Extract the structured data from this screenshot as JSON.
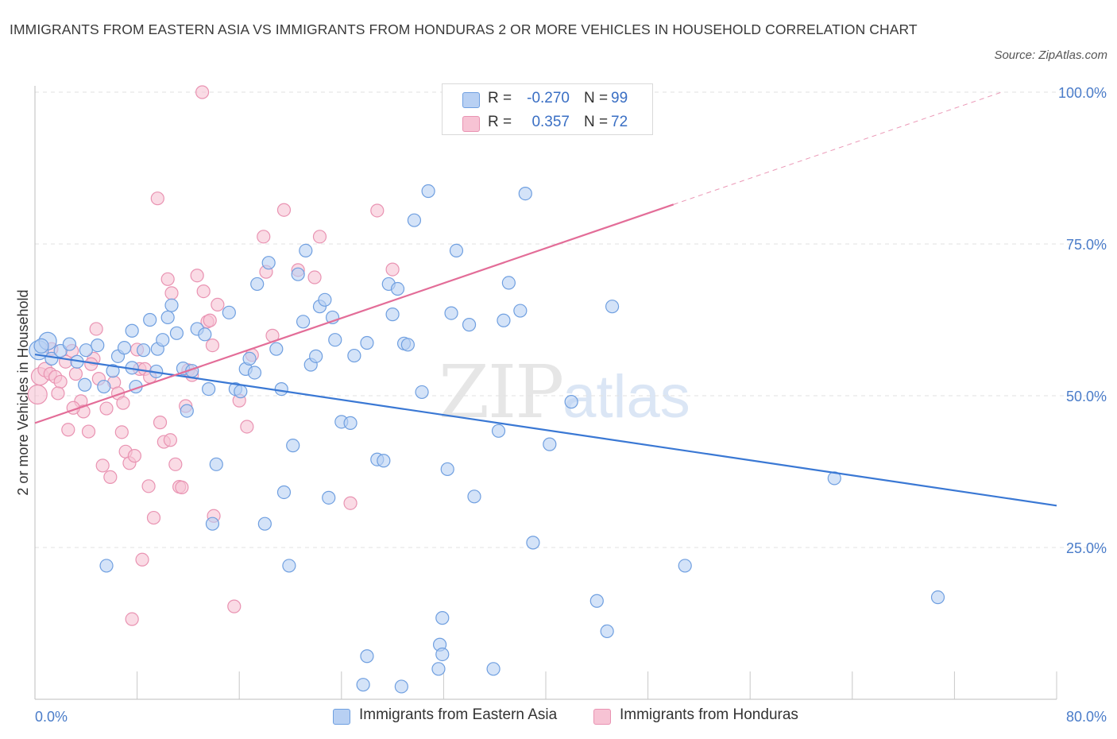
{
  "title": "IMMIGRANTS FROM EASTERN ASIA VS IMMIGRANTS FROM HONDURAS 2 OR MORE VEHICLES IN HOUSEHOLD CORRELATION CHART",
  "source": "Source: ZipAtlas.com",
  "watermark": {
    "zip": "ZIP",
    "atlas": "atlas"
  },
  "legend": {
    "rows": [
      {
        "r_label": "R =",
        "r_value": "-0.270",
        "n_label": "N =",
        "n_value": "99"
      },
      {
        "r_label": "R =",
        "r_value": "0.357",
        "n_label": "N =",
        "n_value": "72"
      }
    ]
  },
  "bottom_legend": {
    "series1": "Immigrants from Eastern Asia",
    "series2": "Immigrants from Honduras"
  },
  "colors": {
    "blue_fill": "#b8d0f3",
    "blue_stroke": "#6f9fe0",
    "blue_line": "#3a78d4",
    "pink_fill": "#f7c3d4",
    "pink_stroke": "#e993b2",
    "pink_line": "#e36d98",
    "grid": "#e1e1e1",
    "axis_text": "#4a7cc9"
  },
  "chart_data": {
    "type": "scatter",
    "title": "IMMIGRANTS FROM EASTERN ASIA VS IMMIGRANTS FROM HONDURAS 2 OR MORE VEHICLES IN HOUSEHOLD CORRELATION CHART",
    "xlabel": "",
    "ylabel": "2 or more Vehicles in Household",
    "xlim": [
      0,
      80
    ],
    "ylim": [
      0,
      100
    ],
    "x_tick_labels": [
      "0.0%",
      "80.0%"
    ],
    "y_ticks": [
      25,
      50,
      75,
      100
    ],
    "y_tick_labels": [
      "25.0%",
      "50.0%",
      "75.0%",
      "100.0%"
    ],
    "grid": true,
    "legend_position": "top-center",
    "series": [
      {
        "name": "Immigrants from Eastern Asia",
        "R": -0.27,
        "N": 99,
        "trend": {
          "x": [
            0,
            80
          ],
          "y": [
            56.8,
            31.9
          ]
        },
        "points": [
          [
            0.3,
            57.5,
            12
          ],
          [
            1.0,
            59.0,
            11
          ],
          [
            0.5,
            58.2,
            9
          ],
          [
            1.3,
            56.1,
            8
          ],
          [
            2.0,
            57.4,
            8
          ],
          [
            2.7,
            58.5,
            8
          ],
          [
            3.3,
            55.6,
            8
          ],
          [
            4.0,
            57.5,
            8
          ],
          [
            4.9,
            58.3,
            8
          ],
          [
            3.9,
            51.8,
            8
          ],
          [
            5.4,
            51.5,
            8
          ],
          [
            6.1,
            54.1,
            8
          ],
          [
            6.5,
            56.5,
            8
          ],
          [
            7.0,
            57.9,
            8
          ],
          [
            7.6,
            54.6,
            8
          ],
          [
            7.9,
            51.5,
            8
          ],
          [
            7.6,
            60.7,
            8
          ],
          [
            8.5,
            57.5,
            8
          ],
          [
            9.0,
            62.5,
            8
          ],
          [
            9.5,
            54.0,
            8
          ],
          [
            9.6,
            57.7,
            8
          ],
          [
            10.0,
            59.2,
            8
          ],
          [
            10.4,
            62.9,
            8
          ],
          [
            10.7,
            64.9,
            8
          ],
          [
            11.1,
            60.3,
            8
          ],
          [
            11.6,
            54.5,
            8
          ],
          [
            11.9,
            47.5,
            8
          ],
          [
            12.3,
            54.1,
            8
          ],
          [
            12.7,
            61.0,
            8
          ],
          [
            13.3,
            60.1,
            8
          ],
          [
            13.6,
            51.1,
            8
          ],
          [
            13.9,
            28.9,
            8
          ],
          [
            14.2,
            38.7,
            8
          ],
          [
            15.2,
            63.7,
            8
          ],
          [
            15.7,
            51.1,
            8
          ],
          [
            16.1,
            50.7,
            8
          ],
          [
            16.5,
            54.4,
            8
          ],
          [
            16.8,
            56.1,
            8
          ],
          [
            17.2,
            53.8,
            8
          ],
          [
            17.4,
            68.4,
            8
          ],
          [
            18.0,
            28.9,
            8
          ],
          [
            18.3,
            71.9,
            8
          ],
          [
            18.9,
            57.7,
            8
          ],
          [
            19.3,
            51.1,
            8
          ],
          [
            19.5,
            34.1,
            8
          ],
          [
            19.9,
            22.0,
            8
          ],
          [
            20.2,
            41.8,
            8
          ],
          [
            20.6,
            70.0,
            8
          ],
          [
            21.0,
            62.2,
            8
          ],
          [
            21.2,
            73.9,
            8
          ],
          [
            21.6,
            55.1,
            8
          ],
          [
            22.0,
            56.5,
            8
          ],
          [
            22.3,
            64.7,
            8
          ],
          [
            22.7,
            65.8,
            8
          ],
          [
            23.0,
            33.2,
            8
          ],
          [
            23.3,
            62.9,
            8
          ],
          [
            23.5,
            59.2,
            8
          ],
          [
            24.0,
            45.7,
            8
          ],
          [
            24.7,
            45.5,
            8
          ],
          [
            25.0,
            56.6,
            8
          ],
          [
            26.0,
            58.7,
            8
          ],
          [
            26.8,
            39.5,
            8
          ],
          [
            27.3,
            39.3,
            8
          ],
          [
            27.7,
            68.4,
            8
          ],
          [
            28.0,
            63.4,
            8
          ],
          [
            28.4,
            67.6,
            8
          ],
          [
            28.9,
            58.6,
            8
          ],
          [
            29.2,
            58.4,
            8
          ],
          [
            29.7,
            78.9,
            8
          ],
          [
            30.3,
            50.6,
            8
          ],
          [
            30.8,
            83.7,
            8
          ],
          [
            31.6,
            5.0,
            8
          ],
          [
            31.9,
            13.4,
            8
          ],
          [
            32.3,
            37.9,
            8
          ],
          [
            32.6,
            63.6,
            8
          ],
          [
            33.0,
            73.9,
            8
          ],
          [
            34.0,
            61.7,
            8
          ],
          [
            34.4,
            33.4,
            8
          ],
          [
            36.3,
            44.2,
            8
          ],
          [
            36.7,
            62.4,
            8
          ],
          [
            37.1,
            68.6,
            8
          ],
          [
            38.0,
            64.0,
            8
          ],
          [
            38.4,
            83.3,
            8
          ],
          [
            39.0,
            25.8,
            8
          ],
          [
            40.3,
            42.0,
            8
          ],
          [
            42.0,
            49.0,
            8
          ],
          [
            44.0,
            16.2,
            8
          ],
          [
            44.8,
            11.2,
            8
          ],
          [
            45.2,
            64.7,
            8
          ],
          [
            50.9,
            22.0,
            8
          ],
          [
            62.6,
            36.4,
            8
          ],
          [
            70.7,
            16.8,
            8
          ],
          [
            31.7,
            9.0,
            8
          ],
          [
            31.9,
            7.4,
            8
          ],
          [
            28.7,
            2.1,
            8
          ],
          [
            26.0,
            7.1,
            8
          ],
          [
            35.9,
            5.0,
            8
          ],
          [
            25.7,
            2.4,
            8
          ],
          [
            5.6,
            22.0,
            8
          ]
        ]
      },
      {
        "name": "Immigrants from Honduras",
        "R": 0.357,
        "N": 72,
        "trend": {
          "x": [
            0,
            50
          ],
          "y": [
            45.5,
            81.5
          ]
        },
        "points": [
          [
            0.2,
            50.2,
            12
          ],
          [
            0.4,
            53.2,
            11
          ],
          [
            0.8,
            54.3,
            9
          ],
          [
            1.2,
            53.6,
            8
          ],
          [
            1.6,
            53.1,
            8
          ],
          [
            2.0,
            52.3,
            8
          ],
          [
            2.4,
            55.6,
            8
          ],
          [
            2.9,
            57.4,
            8
          ],
          [
            3.2,
            53.6,
            8
          ],
          [
            3.6,
            49.1,
            8
          ],
          [
            4.2,
            44.1,
            8
          ],
          [
            4.6,
            56.1,
            8
          ],
          [
            5.0,
            52.8,
            8
          ],
          [
            5.3,
            38.5,
            8
          ],
          [
            5.6,
            47.9,
            8
          ],
          [
            5.9,
            36.6,
            8
          ],
          [
            6.2,
            52.2,
            8
          ],
          [
            6.5,
            50.4,
            8
          ],
          [
            6.9,
            48.8,
            8
          ],
          [
            7.1,
            40.8,
            8
          ],
          [
            7.4,
            38.9,
            8
          ],
          [
            7.8,
            40.1,
            8
          ],
          [
            8.2,
            54.4,
            8
          ],
          [
            8.6,
            54.4,
            8
          ],
          [
            8.9,
            35.1,
            8
          ],
          [
            9.3,
            29.9,
            8
          ],
          [
            9.6,
            82.5,
            8
          ],
          [
            10.1,
            42.4,
            8
          ],
          [
            10.4,
            69.2,
            8
          ],
          [
            10.7,
            66.9,
            8
          ],
          [
            11.0,
            38.7,
            8
          ],
          [
            11.3,
            35.0,
            8
          ],
          [
            11.8,
            48.3,
            8
          ],
          [
            12.0,
            54.2,
            8
          ],
          [
            12.7,
            69.8,
            8
          ],
          [
            13.2,
            67.2,
            8
          ],
          [
            13.5,
            62.2,
            8
          ],
          [
            13.9,
            58.3,
            8
          ],
          [
            14.3,
            65.0,
            8
          ],
          [
            15.6,
            15.3,
            8
          ],
          [
            16.0,
            49.2,
            8
          ],
          [
            16.6,
            44.9,
            8
          ],
          [
            17.0,
            56.7,
            8
          ],
          [
            17.9,
            76.2,
            8
          ],
          [
            18.1,
            70.4,
            8
          ],
          [
            18.6,
            59.9,
            8
          ],
          [
            19.5,
            80.6,
            8
          ],
          [
            20.6,
            70.7,
            8
          ],
          [
            21.9,
            69.5,
            8
          ],
          [
            22.3,
            76.2,
            8
          ],
          [
            24.7,
            32.3,
            8
          ],
          [
            26.8,
            80.5,
            8
          ],
          [
            28.0,
            70.8,
            8
          ],
          [
            13.1,
            100.0,
            8
          ],
          [
            1.8,
            50.4,
            8
          ],
          [
            2.6,
            44.4,
            8
          ],
          [
            3.8,
            47.4,
            8
          ],
          [
            4.4,
            55.2,
            8
          ],
          [
            6.8,
            44.0,
            8
          ],
          [
            7.6,
            13.2,
            8
          ],
          [
            8.0,
            57.6,
            8
          ],
          [
            8.4,
            23.0,
            8
          ],
          [
            9.0,
            53.1,
            8
          ],
          [
            9.8,
            45.6,
            8
          ],
          [
            10.6,
            42.7,
            8
          ],
          [
            11.5,
            34.9,
            8
          ],
          [
            12.3,
            53.4,
            8
          ],
          [
            13.7,
            62.4,
            8
          ],
          [
            14.0,
            30.2,
            8
          ],
          [
            4.8,
            61.0,
            8
          ],
          [
            1.3,
            57.7,
            8
          ],
          [
            3.0,
            48.0,
            8
          ]
        ]
      }
    ]
  }
}
